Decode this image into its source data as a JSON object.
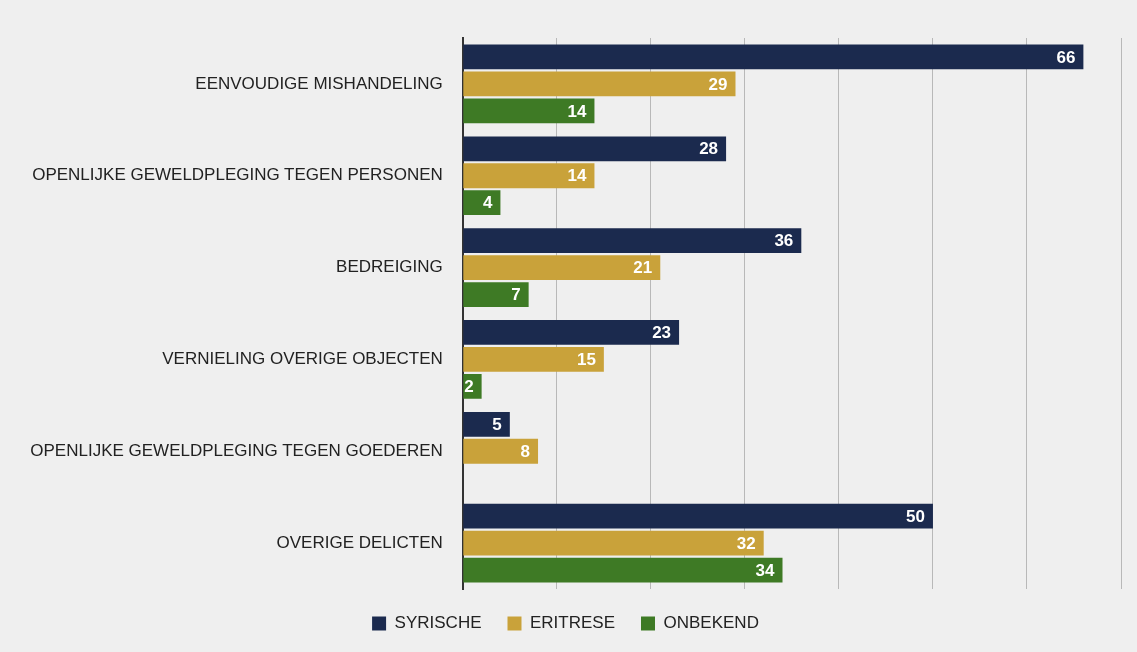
{
  "chart_data": {
    "type": "bar",
    "orientation": "horizontal",
    "categories": [
      "EENVOUDIGE MISHANDELING",
      "OPENLIJKE GEWELDPLEGING TEGEN PERSONEN",
      "BEDREIGING",
      "VERNIELING OVERIGE OBJECTEN",
      "OPENLIJKE GEWELDPLEGING TEGEN GOEDEREN",
      "OVERIGE DELICTEN"
    ],
    "series": [
      {
        "name": "SYRISCHE",
        "color": "#1b2a4e",
        "values": [
          66,
          28,
          36,
          23,
          5,
          50
        ]
      },
      {
        "name": "ERITRESE",
        "color": "#c9a23a",
        "values": [
          29,
          14,
          21,
          15,
          8,
          32
        ]
      },
      {
        "name": "ONBEKEND",
        "color": "#3e7a25",
        "values": [
          14,
          4,
          7,
          2,
          null,
          34
        ]
      }
    ],
    "xlim": [
      0,
      70
    ],
    "xticks": [
      {
        "value": 0,
        "label": null
      },
      {
        "value": 10,
        "label": null
      },
      {
        "value": 20,
        "label": null
      },
      {
        "value": 30,
        "label": null
      },
      {
        "value": 40,
        "label": null
      },
      {
        "value": 50,
        "label": null
      },
      {
        "value": 60,
        "label": null
      },
      {
        "value": 70,
        "label": null
      }
    ],
    "grid": "x",
    "tick_labels": "y",
    "legend": "bottom",
    "data_labels": true
  }
}
